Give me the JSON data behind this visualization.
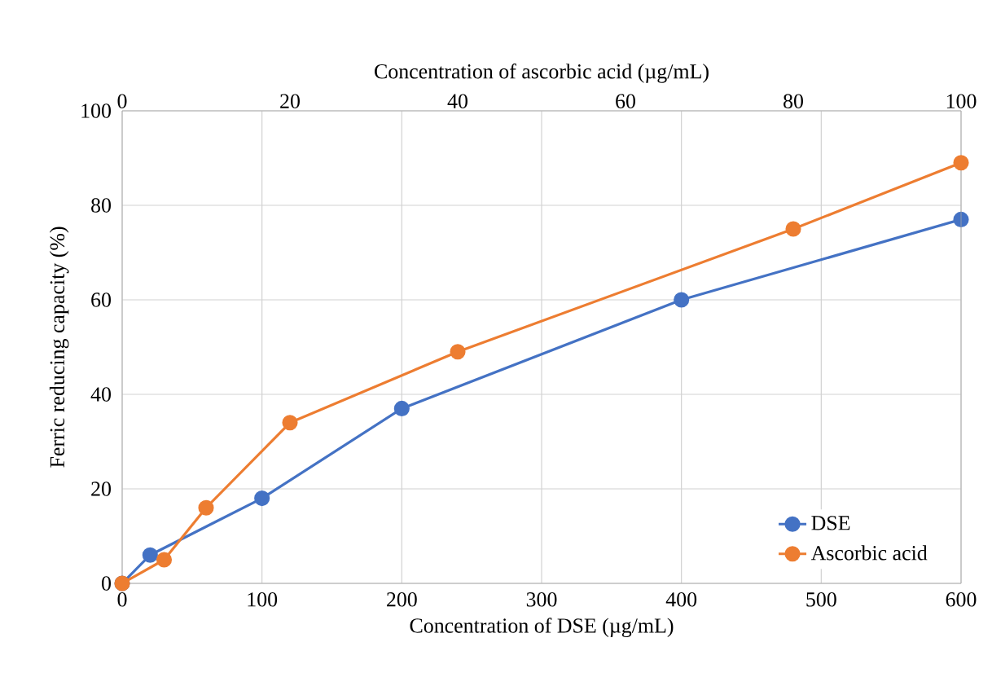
{
  "chart_data": {
    "type": "line",
    "xlabel": "Concentration of DSE (µg/mL)",
    "x2label": "Concentration of ascorbic acid (µg/mL)",
    "ylabel": "Ferric reducing capacity (%)",
    "xlim": [
      0,
      600
    ],
    "xticks": [
      0,
      100,
      200,
      300,
      400,
      500,
      600
    ],
    "x2lim": [
      0,
      100
    ],
    "x2ticks": [
      0,
      20,
      40,
      60,
      80,
      100
    ],
    "ylim": [
      0,
      100
    ],
    "yticks": [
      0,
      20,
      40,
      60,
      80,
      100
    ],
    "grid": true,
    "legend": "bottom right",
    "marker": "circle",
    "line_style": "solid",
    "series": [
      {
        "name": "DSE",
        "color": "#4472c4",
        "x": [
          0,
          20,
          100,
          200,
          400,
          600
        ],
        "values": [
          0,
          6,
          18,
          37,
          60,
          77
        ]
      },
      {
        "name": "Ascorbic acid",
        "color": "#ed7d31",
        "axis": "x2",
        "x": [
          0,
          5,
          10,
          20,
          40,
          80,
          100
        ],
        "values": [
          0,
          5,
          16,
          34,
          49,
          75,
          89
        ]
      }
    ]
  }
}
